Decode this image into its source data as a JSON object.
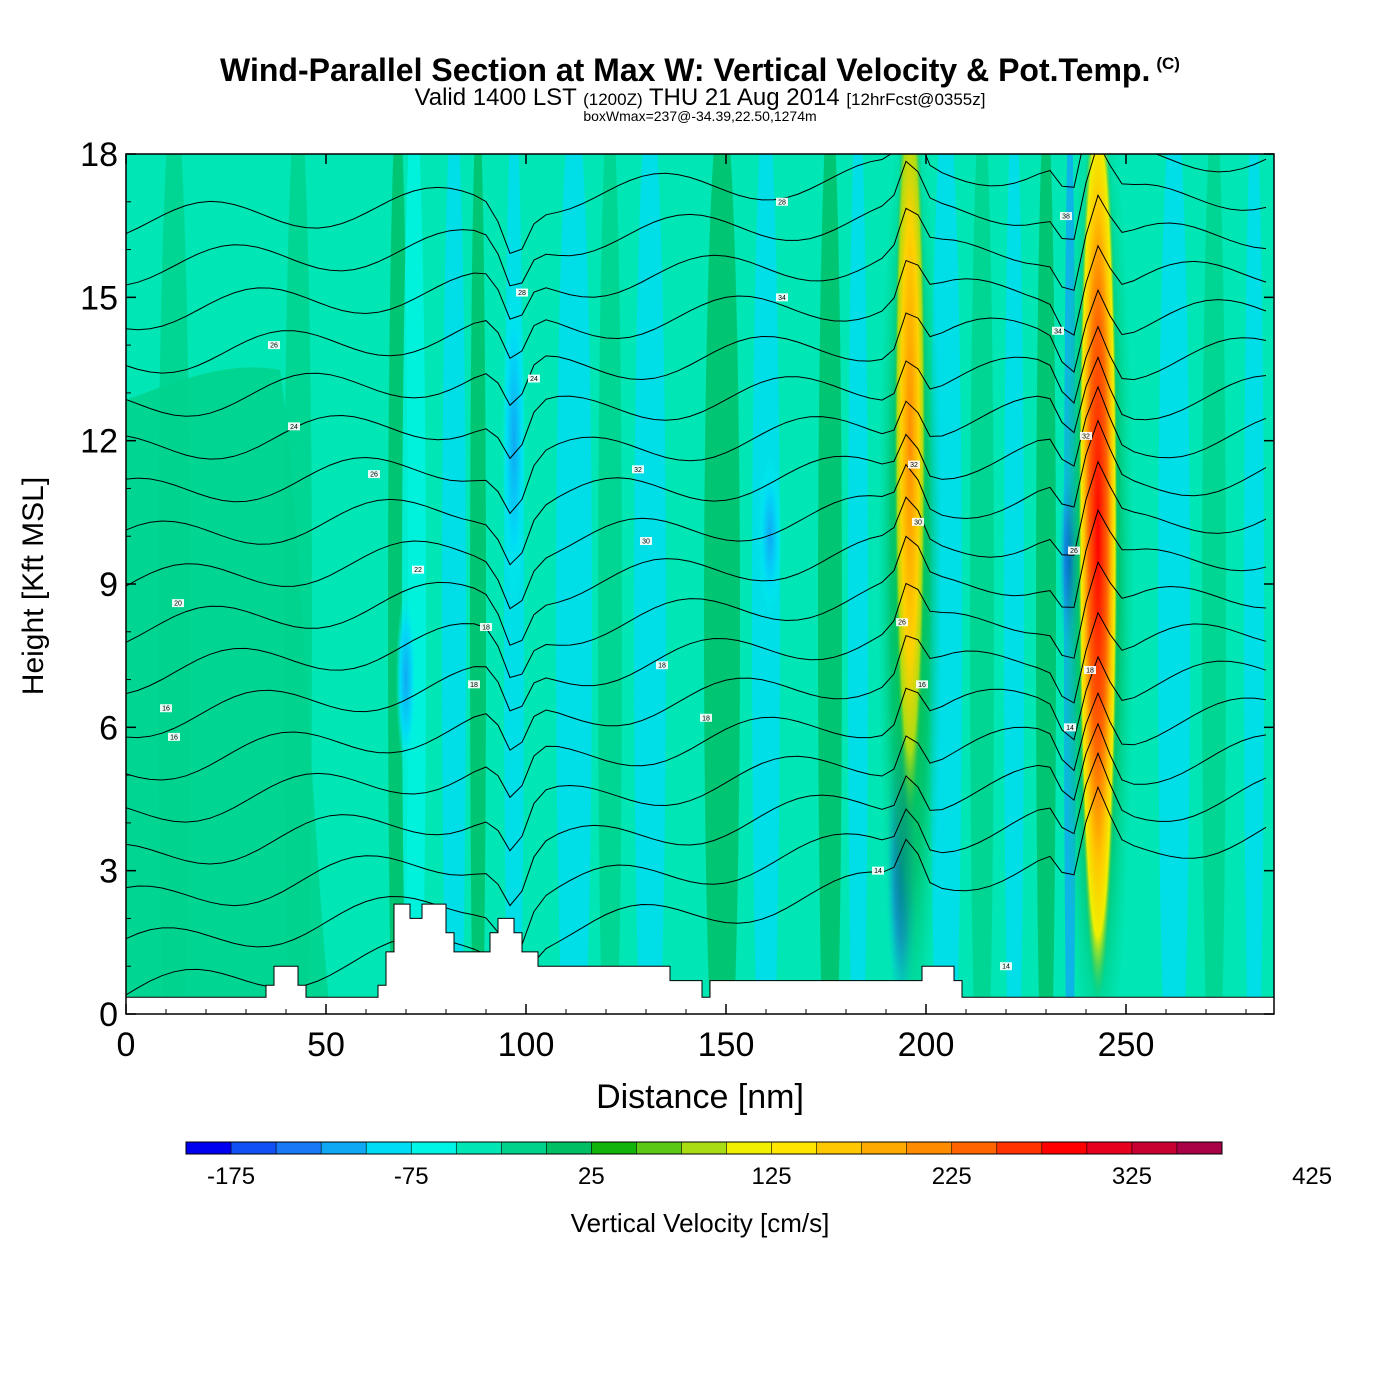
{
  "chart_data": {
    "type": "heatmap",
    "title": "Wind-Parallel Section at Max W: Vertical Velocity & Pot.Temp.",
    "title_mark": "(C)",
    "subtitle_valid": "Valid 1400 LST",
    "subtitle_utc": "(1200Z)",
    "subtitle_date": "THU 21 Aug 2014",
    "subtitle_fcst": "[12hrFcst@0355z]",
    "subsubtitle": "boxWmax=237@-34.39,22.50,1274m",
    "xlabel": "Distance [nm]",
    "ylabel": "Height [Kft MSL]",
    "xlim": [
      0,
      287
    ],
    "ylim": [
      0,
      18
    ],
    "x_ticks": [
      "0",
      "50",
      "100",
      "150",
      "200",
      "250"
    ],
    "y_ticks": [
      "0",
      "3",
      "6",
      "9",
      "12",
      "15",
      "18"
    ],
    "colorbar_title": "Vertical Velocity [cm/s]",
    "colorbar_labels": [
      "-175",
      "-75",
      "25",
      "125",
      "225",
      "325",
      "425"
    ],
    "colorbar_min": -200,
    "colorbar_step": 25,
    "colorbar_colors": [
      "#0000f0",
      "#1050f5",
      "#1878f5",
      "#10a8f5",
      "#00dcf5",
      "#00f5e6",
      "#00e6b4",
      "#00d28c",
      "#00be64",
      "#10b40a",
      "#5ac814",
      "#aadc14",
      "#f0f000",
      "#ffe600",
      "#ffc800",
      "#ffaa00",
      "#ff8c00",
      "#ff6400",
      "#ff3200",
      "#ff0000",
      "#e6001e",
      "#c80032",
      "#aa0046"
    ],
    "updraft_cores_nm": [
      196,
      243
    ],
    "downdraft_cores_nm": [
      96,
      194
    ],
    "contour_labels": [
      "14",
      "16",
      "18",
      "20",
      "22",
      "24",
      "26",
      "28",
      "30",
      "32",
      "34",
      "36",
      "38"
    ]
  }
}
